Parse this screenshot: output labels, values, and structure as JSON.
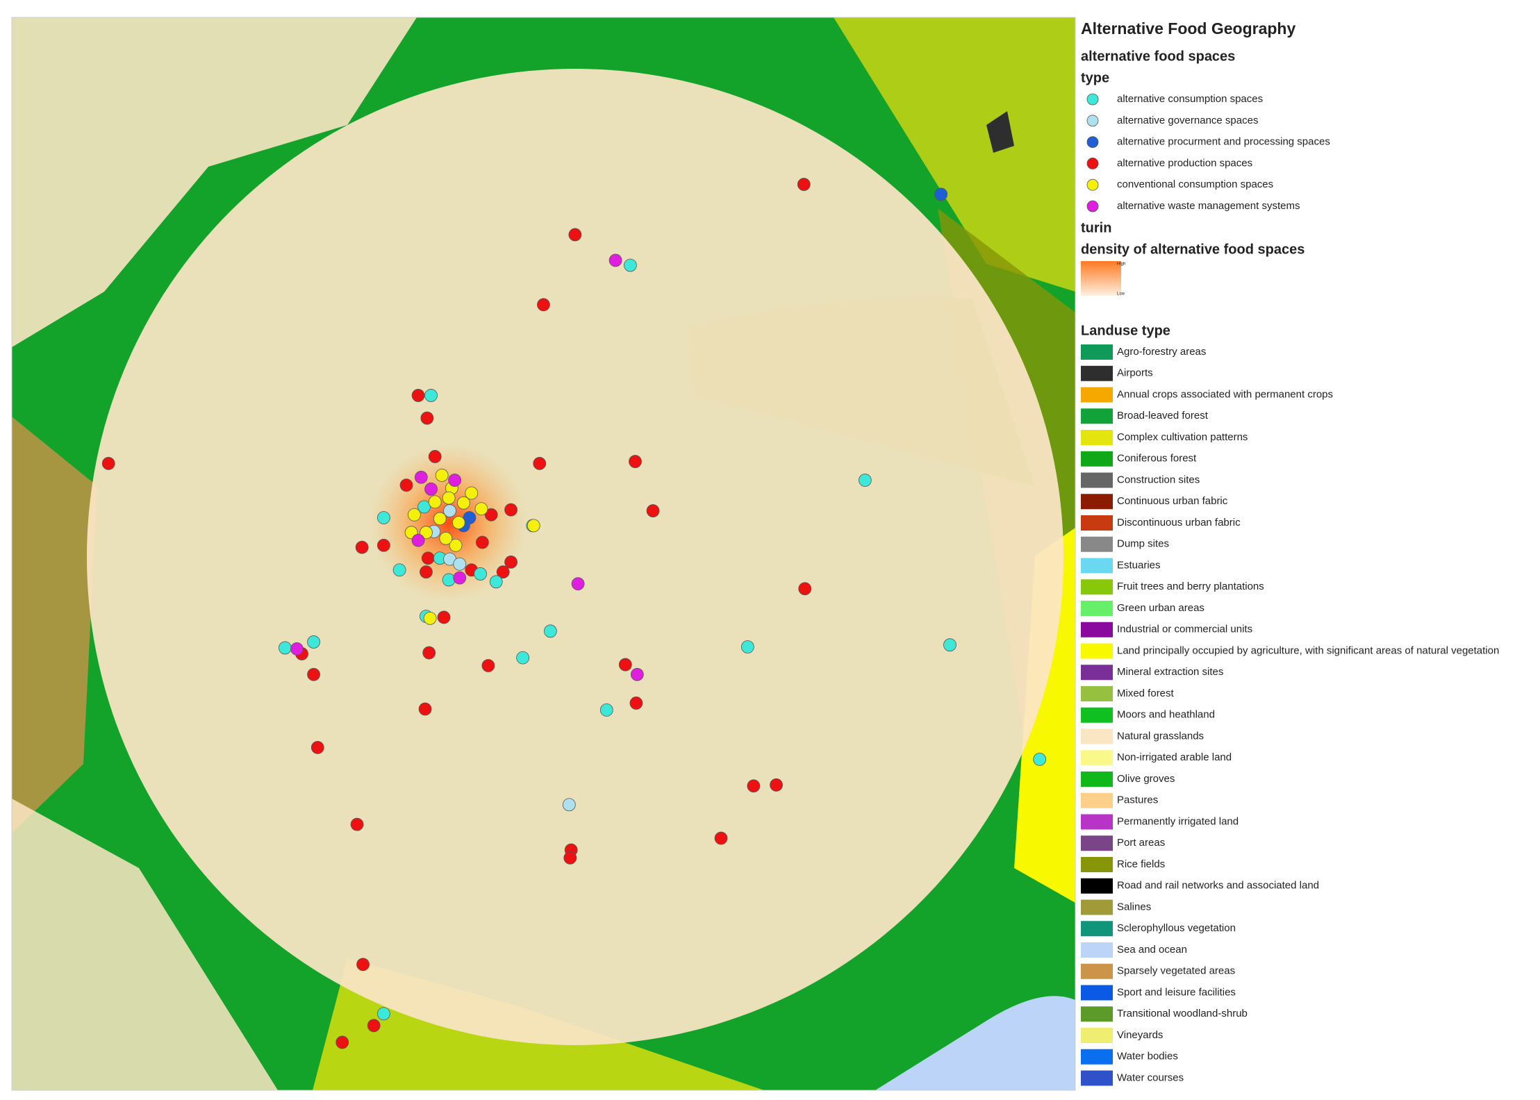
{
  "title": "Alternative Food Geography",
  "food_spaces": {
    "title": "alternative food spaces",
    "subtitle": "type",
    "items": [
      {
        "label": "alternative consumption spaces",
        "color": "#3ee8d8"
      },
      {
        "label": "alternative governance spaces",
        "color": "#aee0ee"
      },
      {
        "label": "alternative procurment and processing spaces",
        "color": "#1f5fd6"
      },
      {
        "label": "alternative production spaces",
        "color": "#ee1111"
      },
      {
        "label": "conventional consumption spaces",
        "color": "#f5f00a"
      },
      {
        "label": "alternative waste management systems",
        "color": "#e01ee0"
      }
    ]
  },
  "boundary": {
    "title": "turin"
  },
  "density": {
    "title": "density of alternative food spaces",
    "high": "High",
    "low": "Low"
  },
  "landuse": {
    "title": "Landuse type",
    "items": [
      {
        "label": "Agro-forestry areas",
        "color": "#109a5a"
      },
      {
        "label": "Airports",
        "color": "#2e2e2e"
      },
      {
        "label": "Annual crops associated with permanent crops",
        "color": "#f5a800"
      },
      {
        "label": "Broad-leaved forest",
        "color": "#11a33a"
      },
      {
        "label": "Complex cultivation patterns",
        "color": "#e4e40e"
      },
      {
        "label": "Coniferous forest",
        "color": "#10a818"
      },
      {
        "label": "Construction sites",
        "color": "#666666"
      },
      {
        "label": "Continuous urban fabric",
        "color": "#8b1c00"
      },
      {
        "label": "Discontinuous urban fabric",
        "color": "#c83a10"
      },
      {
        "label": "Dump sites",
        "color": "#888888"
      },
      {
        "label": "Estuaries",
        "color": "#6ad8f0"
      },
      {
        "label": "Fruit trees and berry plantations",
        "color": "#88c80a"
      },
      {
        "label": "Green urban areas",
        "color": "#66f06a"
      },
      {
        "label": "Industrial or commercial units",
        "color": "#8a0aa0"
      },
      {
        "label": "Land principally occupied by agriculture, with significant areas of natural vegetation",
        "color": "#f8f800"
      },
      {
        "label": "Mineral extraction sites",
        "color": "#7a2e98"
      },
      {
        "label": "Mixed forest",
        "color": "#96c040"
      },
      {
        "label": "Moors and heathland",
        "color": "#10c020"
      },
      {
        "label": "Natural grasslands",
        "color": "#fbe6c4"
      },
      {
        "label": "Non-irrigated arable land",
        "color": "#fbf88a"
      },
      {
        "label": "Olive groves",
        "color": "#10b81a"
      },
      {
        "label": "Pastures",
        "color": "#fcd088"
      },
      {
        "label": "Permanently irrigated land",
        "color": "#b834c8"
      },
      {
        "label": "Port areas",
        "color": "#7a4488"
      },
      {
        "label": "Rice fields",
        "color": "#869608"
      },
      {
        "label": "Road and rail networks and associated land",
        "color": "#000000"
      },
      {
        "label": "Salines",
        "color": "#a09a38"
      },
      {
        "label": "Sclerophyllous vegetation",
        "color": "#10957a"
      },
      {
        "label": "Sea and ocean",
        "color": "#bcd4f8"
      },
      {
        "label": "Sparsely vegetated areas",
        "color": "#cc9448"
      },
      {
        "label": "Sport and leisure facilities",
        "color": "#0a5ae6"
      },
      {
        "label": "Transitional woodland-shrub",
        "color": "#5c9a2a"
      },
      {
        "label": "Vineyards",
        "color": "#f0ee70"
      },
      {
        "label": "Water bodies",
        "color": "#0a6ef0"
      },
      {
        "label": "Water courses",
        "color": "#3052c8"
      }
    ]
  }
}
